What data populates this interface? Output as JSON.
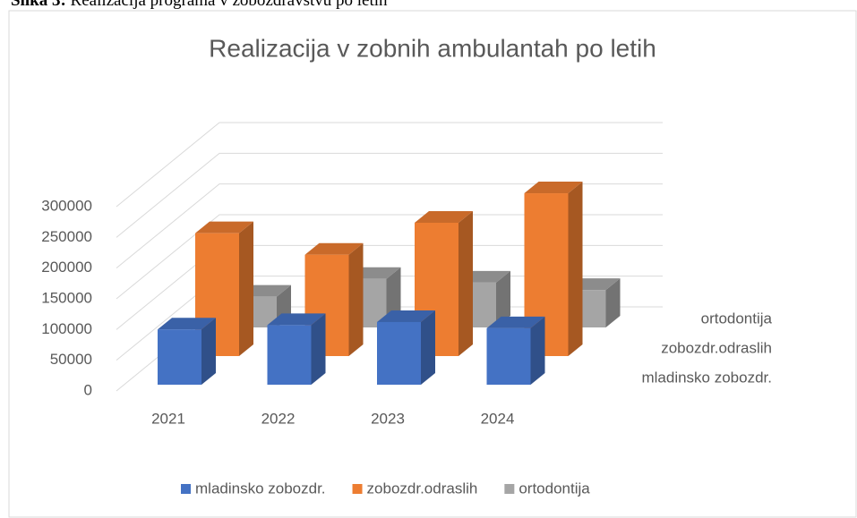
{
  "caption": {
    "label": "Slika 3:",
    "text": "Realizacija programa v zobozdravstvu po letih"
  },
  "chart_data": {
    "type": "bar3d",
    "title": "Realizacija v zobnih ambulantah po letih",
    "categories": [
      "2021",
      "2022",
      "2023",
      "2024"
    ],
    "series": [
      {
        "name": "mladinsko zobozdr.",
        "color": "#4472c4",
        "values": [
          90000,
          97000,
          102000,
          92000
        ]
      },
      {
        "name": "zobozdr.odraslih",
        "color": "#ed7d31",
        "values": [
          200000,
          165000,
          217000,
          265000
        ]
      },
      {
        "name": "ortodontija",
        "color": "#a5a5a5",
        "values": [
          50000,
          79000,
          73000,
          61000
        ]
      }
    ],
    "ylim": [
      0,
      300000
    ],
    "yticks": [
      0,
      50000,
      100000,
      150000,
      200000,
      250000,
      300000
    ],
    "grid": true
  }
}
